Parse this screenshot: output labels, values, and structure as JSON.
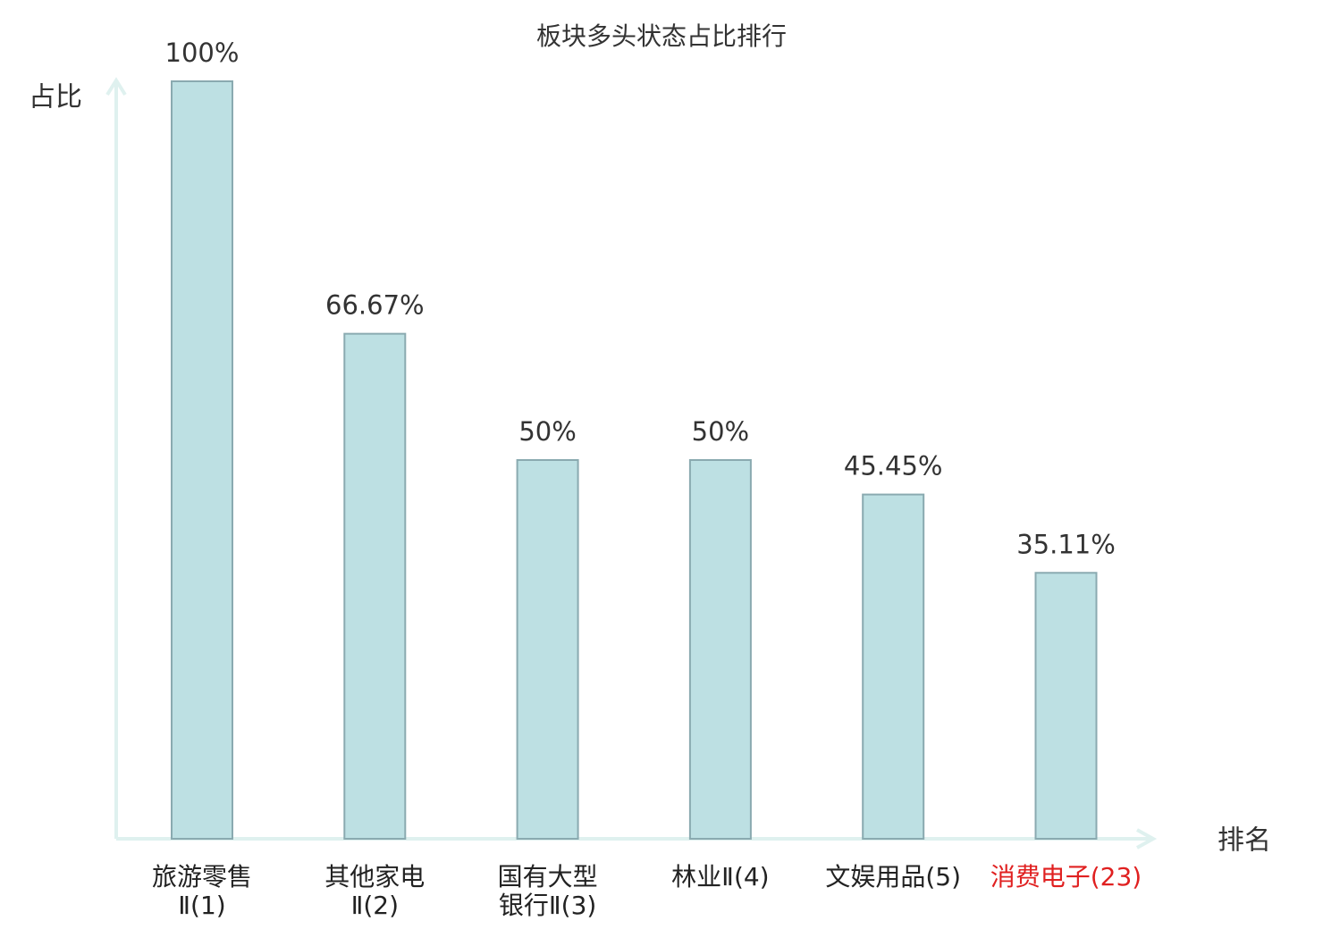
{
  "chart_data": {
    "type": "bar",
    "title": "板块多头状态占比排行",
    "y_label": "占比",
    "x_label": "排名",
    "categories": [
      "旅游零售\nⅡ(1)",
      "其他家电\nⅡ(2)",
      "国有大型\n银行Ⅱ(3)",
      "林业Ⅱ(4)",
      "文娱用品(5)",
      "消费电子(23)"
    ],
    "category_colors": [
      "#222222",
      "#222222",
      "#222222",
      "#222222",
      "#222222",
      "#e02020"
    ],
    "values": [
      100,
      66.67,
      50,
      50,
      45.45,
      35.11
    ],
    "value_labels": [
      "100%",
      "66.67%",
      "50%",
      "50%",
      "45.45%",
      "35.11%"
    ],
    "color": "#bde0e3",
    "edge_color": "#8aaab0",
    "ylim": [
      0,
      100
    ]
  }
}
